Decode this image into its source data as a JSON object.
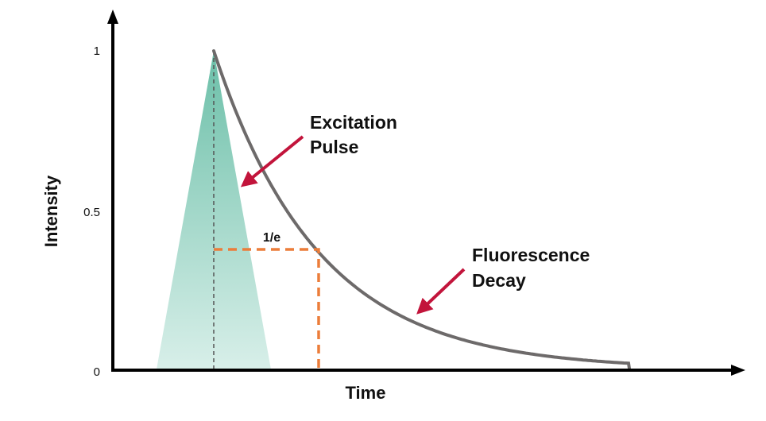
{
  "axes": {
    "x_title": "Time",
    "y_title": "Intensity",
    "y_ticks": [
      "0",
      "0.5",
      "1"
    ]
  },
  "labels": {
    "excitation_line1": "Excitation",
    "excitation_line2": "Pulse",
    "fluorescence_line1": "Fluorescence",
    "fluorescence_line2": "Decay",
    "one_over_e": "1/e"
  },
  "colors": {
    "pulse_top": "#6bbfa8",
    "pulse_bottom": "#d8efe9",
    "decay_curve": "#6d6a6a",
    "one_over_e_marker": "#ec7d3a",
    "arrow": "#c2143b",
    "axis": "#000000",
    "peak_guide": "#555555"
  }
}
